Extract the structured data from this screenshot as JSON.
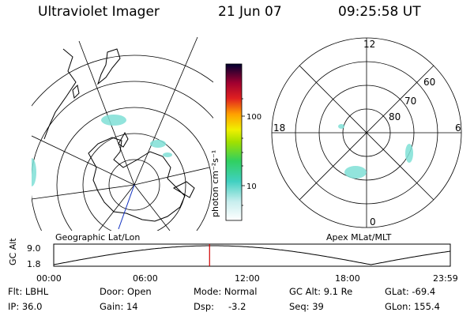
{
  "header": {
    "title": "Ultraviolet Imager",
    "date": "21 Jun 07",
    "time": "09:25:58 UT"
  },
  "left_panel": {
    "label": "Geographic Lat/Lon"
  },
  "right_panel": {
    "label": "Apex MLat/MLT",
    "mlt_labels": {
      "top": "12",
      "bottom": "0",
      "left": "18",
      "right": "6"
    },
    "lat_labels": [
      "60",
      "70",
      "80"
    ]
  },
  "colorbar": {
    "unit_label": "photon cm⁻²s⁻¹",
    "tick_labels": [
      "100",
      "10"
    ]
  },
  "timeline": {
    "y_axis_label": "GC Alt",
    "y_ticks": [
      "9.0",
      "1.8"
    ],
    "x_ticks": [
      "00:00",
      "06:00",
      "12:00",
      "18:00",
      "23:59"
    ],
    "current_fraction": 0.393
  },
  "footer": {
    "filter": "Flt: LBHL",
    "door": "Door: Open",
    "mode": "Mode: Normal",
    "gc_alt": "GC Alt: 9.1 Re",
    "glat": "GLat: -69.4",
    "ip": "IP: 36.0",
    "gain": "Gain: 14",
    "dsp_label": "Dsp:",
    "dsp_value": "-3.2",
    "seq": "Seq: 39",
    "glon": "GLon: 155.4"
  },
  "colors": {
    "marker": "#d00000",
    "emission": "#7fe0d6",
    "orbit_track": "#1030c0"
  }
}
